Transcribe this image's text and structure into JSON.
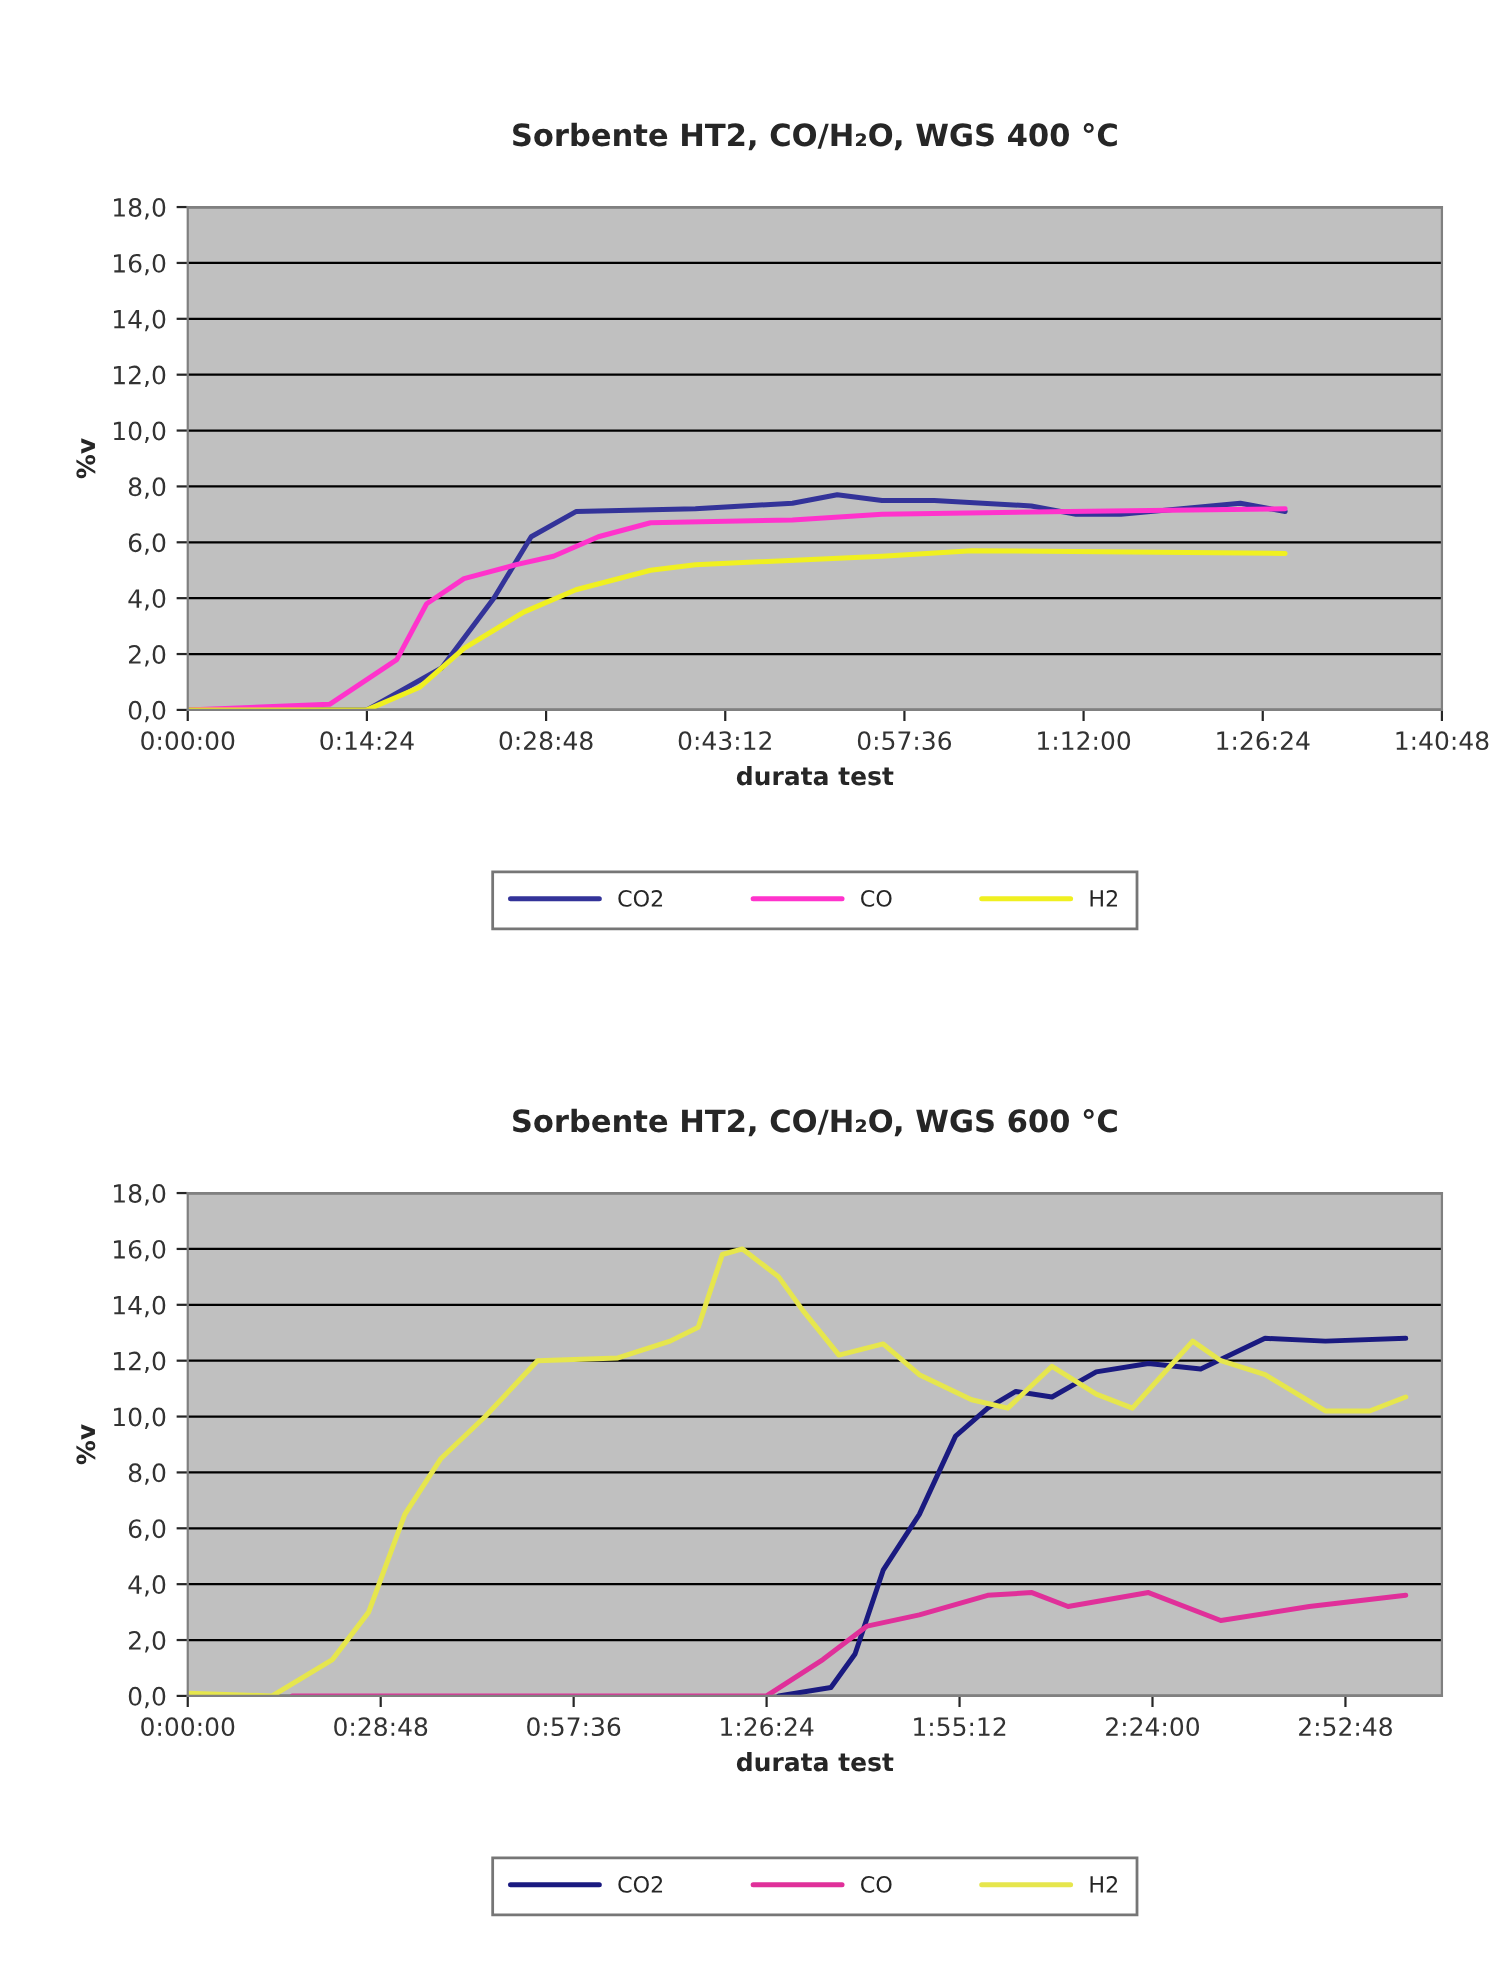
{
  "chart_data": [
    {
      "type": "line",
      "title": "Sorbente HT2, CO/H₂O, WGS 400 °C",
      "xlabel": "durata test",
      "ylabel": "%v",
      "xlim": [
        0,
        1.68
      ],
      "xticks": [
        {
          "value": 0,
          "label": "0:00:00"
        },
        {
          "value": 0.24,
          "label": "0:14:24"
        },
        {
          "value": 0.48,
          "label": "0:28:48"
        },
        {
          "value": 0.72,
          "label": "0:43:12"
        },
        {
          "value": 0.96,
          "label": "0:57:36"
        },
        {
          "value": 1.2,
          "label": "1:12:00"
        },
        {
          "value": 1.44,
          "label": "1:26:24"
        },
        {
          "value": 1.68,
          "label": "1:40:48"
        }
      ],
      "ylim": [
        0,
        18
      ],
      "yticks": [
        {
          "value": 0,
          "label": "0,0"
        },
        {
          "value": 2,
          "label": "2,0"
        },
        {
          "value": 4,
          "label": "4,0"
        },
        {
          "value": 6,
          "label": "6,0"
        },
        {
          "value": 8,
          "label": "8,0"
        },
        {
          "value": 10,
          "label": "10,0"
        },
        {
          "value": 12,
          "label": "12,0"
        },
        {
          "value": 14,
          "label": "14,0"
        },
        {
          "value": 16,
          "label": "16,0"
        },
        {
          "value": 18,
          "label": "18,0"
        }
      ],
      "grid": "y",
      "legend": "bottom",
      "marker": "none",
      "line_style": "solid",
      "series": [
        {
          "name": "CO2",
          "color": "#333399",
          "x": [
            0,
            0.24,
            0.34,
            0.41,
            0.46,
            0.52,
            0.68,
            0.81,
            0.87,
            0.93,
            1.0,
            1.13,
            1.19,
            1.25,
            1.41,
            1.47
          ],
          "values": [
            0,
            0,
            1.5,
            4,
            6.2,
            7.1,
            7.2,
            7.4,
            7.7,
            7.5,
            7.5,
            7.3,
            7.0,
            7.0,
            7.4,
            7.1
          ]
        },
        {
          "name": "CO",
          "color": "#ff33cc",
          "x": [
            0,
            0.19,
            0.28,
            0.32,
            0.37,
            0.44,
            0.49,
            0.55,
            0.62,
            0.81,
            0.93,
            1.18,
            1.47
          ],
          "values": [
            0,
            0.2,
            1.8,
            3.8,
            4.7,
            5.2,
            5.5,
            6.2,
            6.7,
            6.8,
            7.0,
            7.1,
            7.2
          ]
        },
        {
          "name": "H2",
          "color": "#f0f020",
          "x": [
            0,
            0.24,
            0.31,
            0.37,
            0.45,
            0.52,
            0.62,
            0.68,
            0.93,
            1.05,
            1.47
          ],
          "values": [
            0,
            0,
            0.8,
            2.2,
            3.5,
            4.3,
            5.0,
            5.2,
            5.5,
            5.7,
            5.6
          ]
        }
      ]
    },
    {
      "type": "line",
      "title": "Sorbente HT2, CO/H₂O, WGS 600 °C",
      "xlabel": "durata test",
      "ylabel": "%v",
      "xlim": [
        0,
        3.12
      ],
      "xticks": [
        {
          "value": 0,
          "label": "0:00:00"
        },
        {
          "value": 0.48,
          "label": "0:28:48"
        },
        {
          "value": 0.96,
          "label": "0:57:36"
        },
        {
          "value": 1.44,
          "label": "1:26:24"
        },
        {
          "value": 1.92,
          "label": "1:55:12"
        },
        {
          "value": 2.4,
          "label": "2:24:00"
        },
        {
          "value": 2.88,
          "label": "2:52:48"
        }
      ],
      "ylim": [
        0,
        18
      ],
      "yticks": [
        {
          "value": 0,
          "label": "0,0"
        },
        {
          "value": 2,
          "label": "2,0"
        },
        {
          "value": 4,
          "label": "4,0"
        },
        {
          "value": 6,
          "label": "6,0"
        },
        {
          "value": 8,
          "label": "8,0"
        },
        {
          "value": 10,
          "label": "10,0"
        },
        {
          "value": 12,
          "label": "12,0"
        },
        {
          "value": 14,
          "label": "14,0"
        },
        {
          "value": 16,
          "label": "16,0"
        },
        {
          "value": 18,
          "label": "18,0"
        }
      ],
      "grid": "y",
      "legend": "bottom",
      "marker": "none",
      "line_style": "solid",
      "series": [
        {
          "name": "CO2",
          "color": "#1a1a80",
          "x": [
            1.47,
            1.6,
            1.66,
            1.73,
            1.82,
            1.91,
            1.99,
            2.06,
            2.15,
            2.26,
            2.39,
            2.52,
            2.68,
            2.83,
            3.03
          ],
          "values": [
            0,
            0.3,
            1.5,
            4.5,
            6.5,
            9.3,
            10.3,
            10.9,
            10.7,
            11.6,
            11.9,
            11.7,
            12.8,
            12.7,
            12.8
          ]
        },
        {
          "name": "CO",
          "color": "#e0309a",
          "x": [
            0.26,
            1.44,
            1.58,
            1.69,
            1.82,
            1.99,
            2.1,
            2.19,
            2.39,
            2.57,
            2.79,
            3.03
          ],
          "values": [
            0,
            0,
            1.3,
            2.5,
            2.9,
            3.6,
            3.7,
            3.2,
            3.7,
            2.7,
            3.2,
            3.6
          ]
        },
        {
          "name": "H2",
          "color": "#e6e64d",
          "x": [
            0,
            0.21,
            0.36,
            0.45,
            0.54,
            0.63,
            0.74,
            0.87,
            1.07,
            1.2,
            1.27,
            1.33,
            1.38,
            1.47,
            1.53,
            1.62,
            1.73,
            1.82,
            1.95,
            2.04,
            2.15,
            2.26,
            2.35,
            2.5,
            2.57,
            2.68,
            2.83,
            2.94,
            3.03
          ],
          "values": [
            0.1,
            0,
            1.3,
            3,
            6.5,
            8.5,
            10,
            12,
            12.1,
            12.7,
            13.2,
            15.8,
            16.0,
            15,
            13.8,
            12.2,
            12.6,
            11.5,
            10.6,
            10.3,
            11.8,
            10.8,
            10.3,
            12.7,
            12.0,
            11.5,
            10.2,
            10.2,
            10.7
          ]
        }
      ]
    }
  ]
}
